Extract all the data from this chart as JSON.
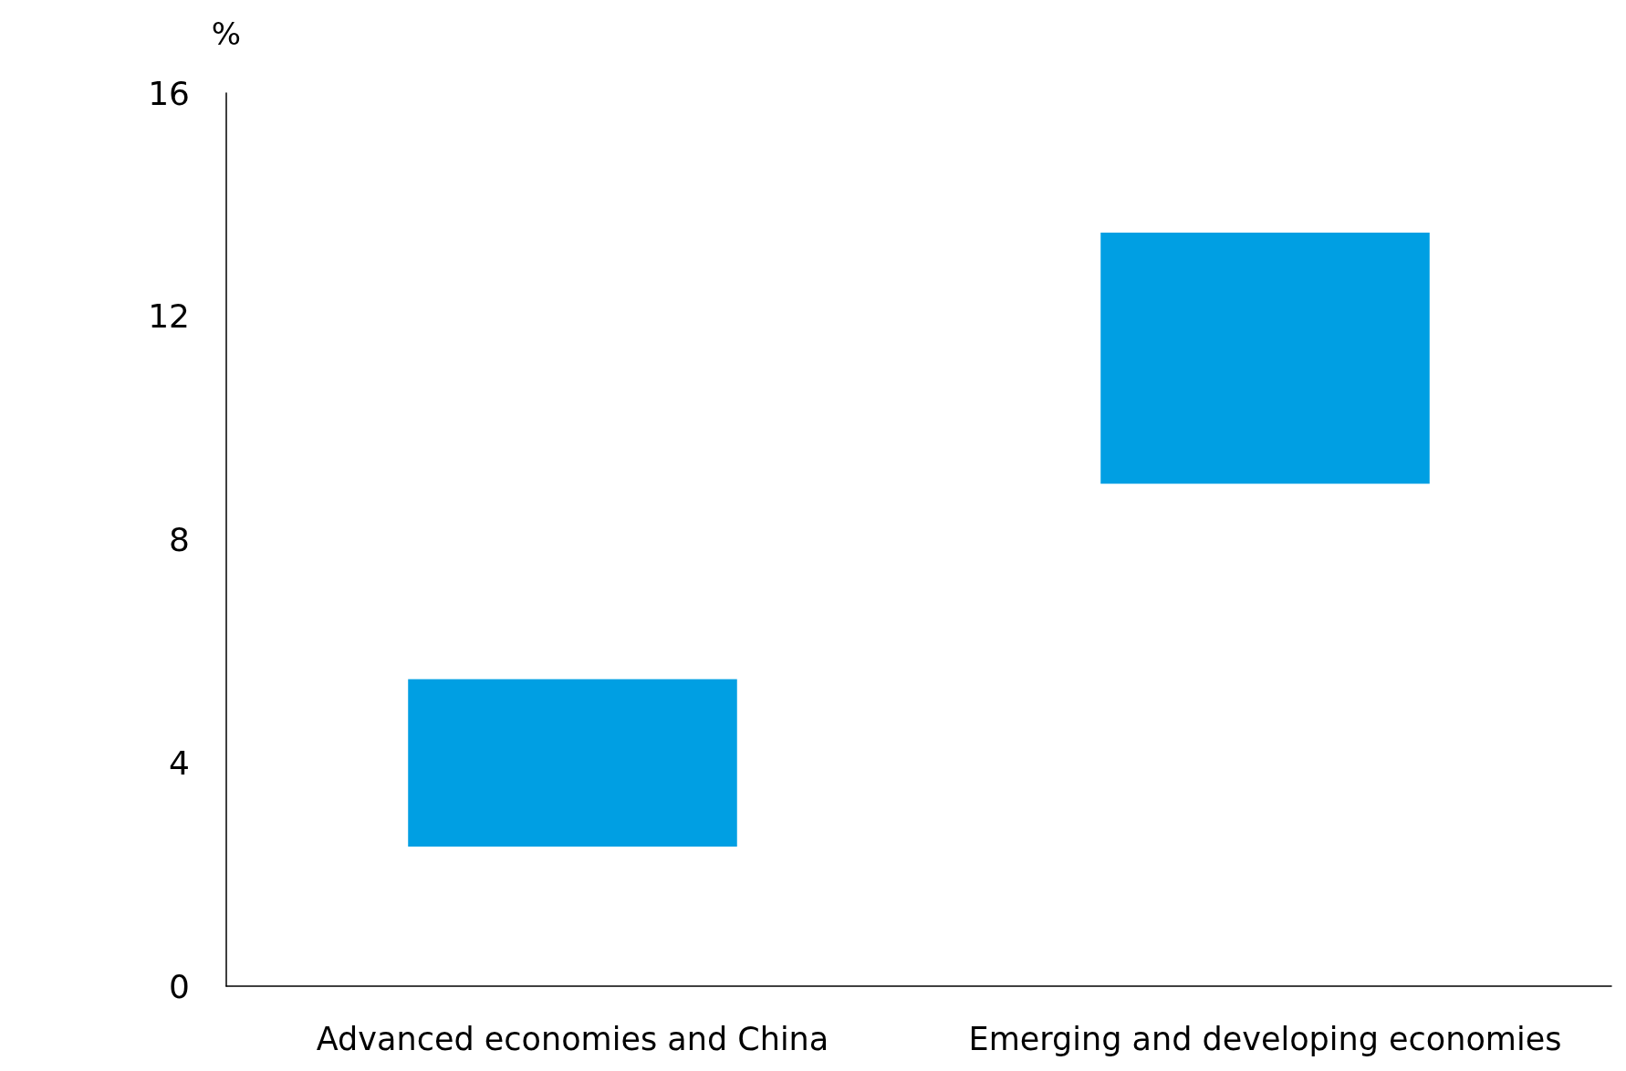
{
  "chart_data": {
    "type": "bar",
    "ylabel": "%",
    "categories": [
      "Advanced economies and China",
      "Emerging and developing economies"
    ],
    "base": [
      2.5,
      9
    ],
    "values": [
      3,
      4.5
    ],
    "color": "#009fe3",
    "ylim": [
      0,
      16
    ],
    "yticks": [
      0,
      4,
      8,
      12,
      16
    ],
    "grid": false
  }
}
